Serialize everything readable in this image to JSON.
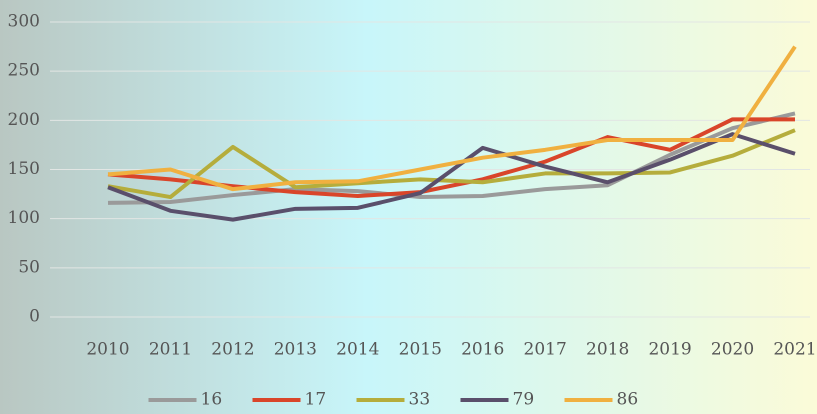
{
  "chart_data": {
    "type": "line",
    "categories": [
      "2010",
      "2011",
      "2012",
      "2013",
      "2014",
      "2015",
      "2016",
      "2017",
      "2018",
      "2019",
      "2020",
      "2021"
    ],
    "series": [
      {
        "name": "16",
        "color": "#9a9a9a",
        "values": [
          116,
          117,
          124,
          130,
          128,
          122,
          123,
          130,
          134,
          165,
          192,
          207
        ]
      },
      {
        "name": "17",
        "color": "#d9452a",
        "values": [
          145,
          140,
          133,
          127,
          123,
          127,
          140,
          158,
          183,
          170,
          201,
          201
        ]
      },
      {
        "name": "33",
        "color": "#b5ad3c",
        "values": [
          133,
          122,
          173,
          132,
          136,
          140,
          137,
          146,
          146,
          147,
          164,
          190
        ]
      },
      {
        "name": "79",
        "color": "#5a4f6b",
        "values": [
          132,
          108,
          99,
          110,
          111,
          126,
          172,
          153,
          137,
          160,
          186,
          166
        ]
      },
      {
        "name": "86",
        "color": "#f0b040",
        "values": [
          145,
          150,
          130,
          137,
          138,
          150,
          162,
          170,
          180,
          180,
          180,
          275
        ]
      }
    ],
    "ylim": [
      0,
      300
    ],
    "yticks": [
      0,
      50,
      100,
      150,
      200,
      250,
      300
    ],
    "grid": true,
    "legend": "bottom"
  }
}
